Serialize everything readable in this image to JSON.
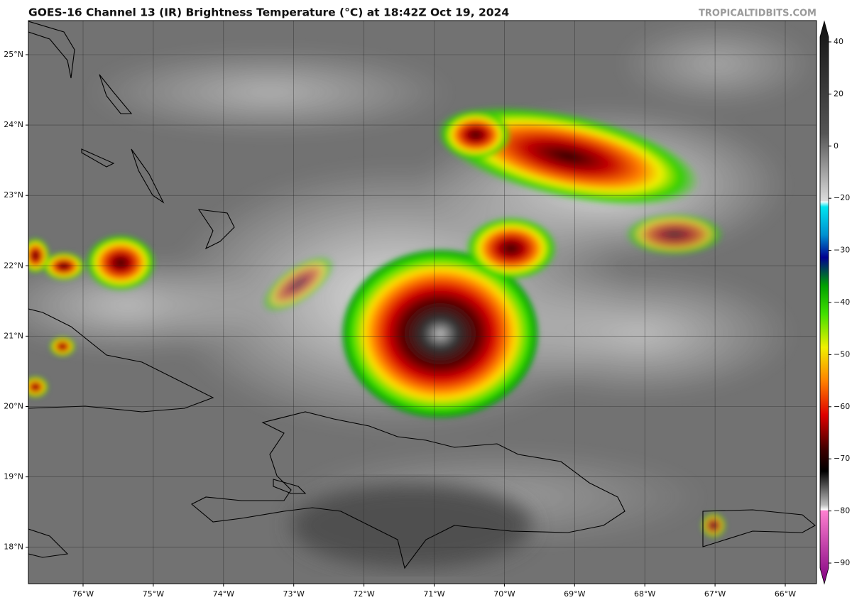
{
  "header": {
    "title": "GOES-16 Channel 13 (IR) Brightness Temperature (°C) at 18:42Z Oct 19, 2024",
    "watermark": "TROPICALTIDBITS.COM"
  },
  "map": {
    "lat_labels": [
      "25°N",
      "24°N",
      "23°N",
      "22°N",
      "21°N",
      "20°N",
      "19°N",
      "18°N"
    ],
    "lon_labels": [
      "76°W",
      "75°W",
      "74°W",
      "73°W",
      "72°W",
      "71°W",
      "70°W",
      "69°W",
      "68°W",
      "67°W",
      "66°W"
    ]
  },
  "colorbar": {
    "ticks": [
      "40",
      "20",
      "0",
      "−20",
      "−30",
      "−40",
      "−50",
      "−60",
      "−70",
      "−80",
      "−90"
    ]
  }
}
